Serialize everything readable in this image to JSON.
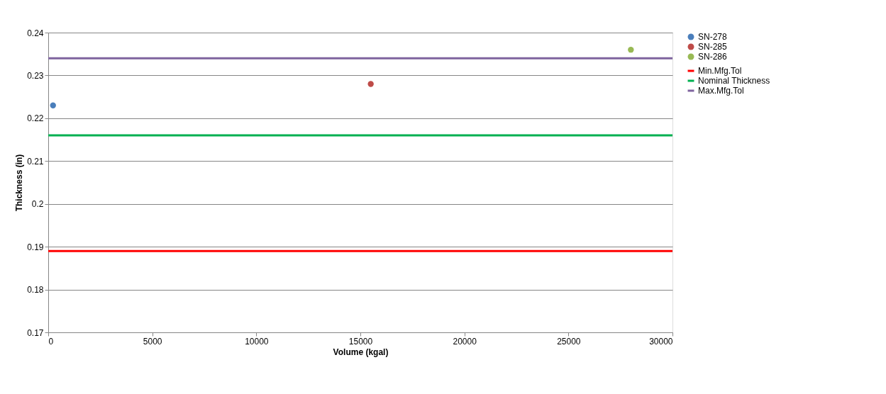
{
  "chart_data": {
    "type": "scatter",
    "xlabel": "Volume (kgal)",
    "ylabel": "Thickness (in)",
    "xlim": [
      0,
      30000
    ],
    "xticks": [
      0,
      5000,
      10000,
      15000,
      20000,
      25000,
      30000
    ],
    "ylim": [
      0.17,
      0.24
    ],
    "yticks": [
      0.17,
      0.18,
      0.19,
      0.2,
      0.21,
      0.22,
      0.23,
      0.24
    ],
    "grid": "y",
    "legend": "right",
    "marker": "circle",
    "series": [
      {
        "name": "SN-278",
        "color": "#4a7ebb",
        "x": [
          230
        ],
        "values": [
          0.223
        ]
      },
      {
        "name": "SN-285",
        "color": "#be4b48",
        "x": [
          15500
        ],
        "values": [
          0.228
        ]
      },
      {
        "name": "SN-286",
        "color": "#98b954",
        "x": [
          28000
        ],
        "values": [
          0.236
        ]
      },
      {
        "name": "Min.Mfg.Tol",
        "color": "#ff0000",
        "type": "line",
        "marker": "none",
        "line_style": "solid",
        "x": [
          0,
          30000
        ],
        "values": [
          0.189,
          0.189
        ]
      },
      {
        "name": "Nominal Thickness",
        "color": "#00b050",
        "type": "line",
        "marker": "none",
        "line_style": "solid",
        "x": [
          0,
          30000
        ],
        "values": [
          0.216,
          0.216
        ]
      },
      {
        "name": "Max.Mfg.Tol",
        "color": "#7e649e",
        "type": "line",
        "marker": "none",
        "line_style": "solid",
        "x": [
          0,
          30000
        ],
        "values": [
          0.234,
          0.234
        ]
      }
    ]
  }
}
